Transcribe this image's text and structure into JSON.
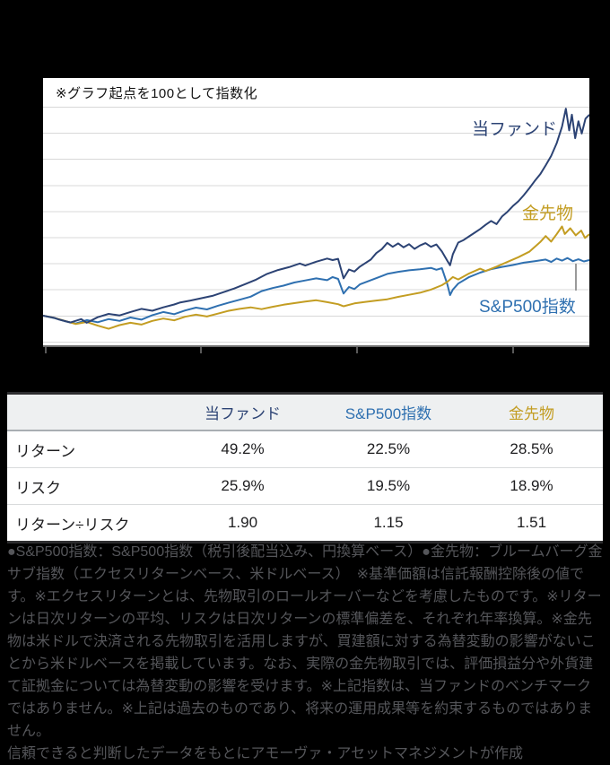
{
  "chart": {
    "note": "※グラフ起点を100として指数化",
    "series_labels": {
      "fund": "当ファンド",
      "gold": "金先物",
      "sp500": "S&P500指数"
    },
    "colors": {
      "fund": "#2c4374",
      "gold": "#c39d22",
      "sp500": "#2f70b0",
      "gridline": "#d8d8d8"
    }
  },
  "chart_data": {
    "type": "line",
    "title": "※グラフ起点を100として指数化",
    "baseline": 100,
    "x_unit": "percent_of_period",
    "x_axis_labels": "redacted (blacked out)",
    "y_axis_labels": "none shown",
    "ylim": [
      88,
      182
    ],
    "grid": "horizontal, 10-unit spacing",
    "legend_position": "inline labels at line ends",
    "series": [
      {
        "id": "sp500",
        "name": "S&P500指数",
        "color": "#2f70b0",
        "points": [
          [
            0,
            100
          ],
          [
            2,
            99.1
          ],
          [
            4,
            97.9
          ],
          [
            6,
            97
          ],
          [
            8,
            98.3
          ],
          [
            10,
            97.5
          ],
          [
            12,
            98.7
          ],
          [
            14,
            98
          ],
          [
            16,
            99.3
          ],
          [
            18,
            98.5
          ],
          [
            20,
            100.2
          ],
          [
            22,
            101.4
          ],
          [
            24,
            100.6
          ],
          [
            26,
            102
          ],
          [
            28,
            103.1
          ],
          [
            30,
            102.4
          ],
          [
            32,
            103.8
          ],
          [
            34,
            105
          ],
          [
            36,
            106.1
          ],
          [
            38,
            107.3
          ],
          [
            40,
            109.4
          ],
          [
            42,
            110.6
          ],
          [
            44,
            111.5
          ],
          [
            46,
            112.7
          ],
          [
            48,
            113.5
          ],
          [
            50,
            114.3
          ],
          [
            52,
            113.6
          ],
          [
            53,
            114.8
          ],
          [
            54,
            114.1
          ],
          [
            55,
            108.5
          ],
          [
            56,
            111
          ],
          [
            57,
            110.2
          ],
          [
            58,
            112
          ],
          [
            60,
            113.6
          ],
          [
            62,
            115.2
          ],
          [
            63,
            116
          ],
          [
            65,
            116.8
          ],
          [
            67,
            117.4
          ],
          [
            69,
            117.8
          ],
          [
            71,
            118.3
          ],
          [
            72,
            117.6
          ],
          [
            73,
            118.2
          ],
          [
            74,
            112
          ],
          [
            74.5,
            107.9
          ],
          [
            75,
            110
          ],
          [
            76,
            112.3
          ],
          [
            78,
            114.8
          ],
          [
            80,
            116.5
          ],
          [
            82,
            117.8
          ],
          [
            84,
            118.7
          ],
          [
            86,
            119.4
          ],
          [
            88,
            120.3
          ],
          [
            90,
            120.9
          ],
          [
            92,
            121.5
          ],
          [
            93,
            120.6
          ],
          [
            94,
            121.9
          ],
          [
            95,
            121.1
          ],
          [
            96,
            122.1
          ],
          [
            97,
            120.9
          ],
          [
            98,
            121.6
          ],
          [
            99,
            120.8
          ],
          [
            100,
            121.3
          ]
        ]
      },
      {
        "id": "gold",
        "name": "金先物",
        "color": "#c39d22",
        "points": [
          [
            0,
            100
          ],
          [
            2,
            99.2
          ],
          [
            4,
            98
          ],
          [
            6,
            96.8
          ],
          [
            8,
            97.6
          ],
          [
            10,
            96.2
          ],
          [
            12,
            95
          ],
          [
            14,
            96.4
          ],
          [
            16,
            97.3
          ],
          [
            18,
            96.6
          ],
          [
            20,
            98
          ],
          [
            22,
            98.9
          ],
          [
            24,
            98.2
          ],
          [
            26,
            99.6
          ],
          [
            28,
            100.4
          ],
          [
            30,
            99.7
          ],
          [
            32,
            100.8
          ],
          [
            34,
            101.9
          ],
          [
            36,
            102.6
          ],
          [
            38,
            103.2
          ],
          [
            40,
            102.5
          ],
          [
            42,
            103.4
          ],
          [
            44,
            104.2
          ],
          [
            46,
            104.8
          ],
          [
            48,
            105.4
          ],
          [
            50,
            105.9
          ],
          [
            52,
            105.2
          ],
          [
            54,
            104.4
          ],
          [
            55,
            103.6
          ],
          [
            57,
            104.7
          ],
          [
            59,
            105.3
          ],
          [
            61,
            105.8
          ],
          [
            63,
            106.3
          ],
          [
            65,
            107.2
          ],
          [
            67,
            108
          ],
          [
            69,
            108.8
          ],
          [
            71,
            110
          ],
          [
            73,
            111.7
          ],
          [
            74,
            113
          ],
          [
            75,
            114.8
          ],
          [
            76,
            113.9
          ],
          [
            78,
            116.2
          ],
          [
            80,
            118
          ],
          [
            81,
            117.1
          ],
          [
            83,
            118.8
          ],
          [
            85,
            120.6
          ],
          [
            87,
            122.4
          ],
          [
            89,
            124.5
          ],
          [
            91,
            128.2
          ],
          [
            92,
            130.5
          ],
          [
            93,
            128.4
          ],
          [
            94,
            131.2
          ],
          [
            95,
            134.2
          ],
          [
            95.5,
            131.3
          ],
          [
            96.5,
            133.5
          ],
          [
            97.5,
            130.8
          ],
          [
            98.5,
            132.6
          ],
          [
            99.2,
            129.8
          ],
          [
            100,
            131.2
          ]
        ]
      },
      {
        "id": "fund",
        "name": "当ファンド",
        "color": "#2c4374",
        "points": [
          [
            0,
            100
          ],
          [
            2,
            99.2
          ],
          [
            3,
            98.5
          ],
          [
            5,
            97.4
          ],
          [
            7,
            98.7
          ],
          [
            8,
            97.3
          ],
          [
            10,
            99.4
          ],
          [
            12,
            100.7
          ],
          [
            14,
            100.1
          ],
          [
            16,
            101.4
          ],
          [
            18,
            102.6
          ],
          [
            20,
            101.9
          ],
          [
            22,
            103.2
          ],
          [
            24,
            104.3
          ],
          [
            25,
            105
          ],
          [
            27,
            105.8
          ],
          [
            29,
            106.7
          ],
          [
            31,
            107.6
          ],
          [
            33,
            109
          ],
          [
            35,
            110.4
          ],
          [
            37,
            112.1
          ],
          [
            39,
            113.8
          ],
          [
            41,
            116
          ],
          [
            43,
            117.5
          ],
          [
            45,
            118.6
          ],
          [
            47,
            120
          ],
          [
            48,
            119.2
          ],
          [
            50,
            120.7
          ],
          [
            52,
            121.9
          ],
          [
            53,
            121.3
          ],
          [
            54,
            121.8
          ],
          [
            55,
            114.3
          ],
          [
            56,
            117.7
          ],
          [
            57,
            116.9
          ],
          [
            58,
            118.8
          ],
          [
            60,
            121.5
          ],
          [
            61,
            124
          ],
          [
            62,
            125.5
          ],
          [
            63,
            127.9
          ],
          [
            64,
            126.4
          ],
          [
            65,
            127.7
          ],
          [
            66,
            126.2
          ],
          [
            67,
            127.4
          ],
          [
            68,
            125.6
          ],
          [
            69,
            126.9
          ],
          [
            70,
            127.8
          ],
          [
            71,
            126.4
          ],
          [
            72,
            127.3
          ],
          [
            73,
            124.6
          ],
          [
            74,
            121
          ],
          [
            74.5,
            119.3
          ],
          [
            75,
            123.5
          ],
          [
            76,
            128
          ],
          [
            77,
            129
          ],
          [
            78,
            130.4
          ],
          [
            79,
            131.8
          ],
          [
            80,
            133.2
          ],
          [
            81,
            134.8
          ],
          [
            82,
            136.3
          ],
          [
            83,
            135.1
          ],
          [
            84,
            138
          ],
          [
            85,
            139.8
          ],
          [
            86,
            142
          ],
          [
            87,
            143.8
          ],
          [
            88,
            146.2
          ],
          [
            89,
            148.8
          ],
          [
            90,
            151.6
          ],
          [
            91,
            154.2
          ],
          [
            92,
            157.6
          ],
          [
            93,
            161.2
          ],
          [
            94,
            166
          ],
          [
            95,
            172.4
          ],
          [
            95.7,
            179.3
          ],
          [
            96.3,
            171
          ],
          [
            96.8,
            177
          ],
          [
            97.4,
            168
          ],
          [
            98,
            174.5
          ],
          [
            98.6,
            169.8
          ],
          [
            99.3,
            175.5
          ],
          [
            100,
            177
          ]
        ]
      }
    ]
  },
  "table": {
    "header": [
      "",
      "当ファンド",
      "S&P500指数",
      "金先物"
    ],
    "rows": [
      {
        "label": "リターン",
        "values": [
          "49.2%",
          "22.5%",
          "28.5%"
        ]
      },
      {
        "label": "リスク",
        "values": [
          "25.9%",
          "19.5%",
          "18.9%"
        ]
      },
      {
        "label": "リターン÷リスク",
        "values": [
          "1.90",
          "1.15",
          "1.51"
        ]
      }
    ]
  },
  "footnotes": {
    "main": "●S&P500指数：S&P500指数（税引後配当込み、円換算ベース）●金先物：ブルームバーグ金サブ指数（エクセスリターンベース、米ドルベース）　※基準価額は信託報酬控除後の値です。※エクセスリターンとは、先物取引のロールオーバーなどを考慮したものです。※リターンは日次リターンの平均、リスクは日次リターンの標準偏差を、それぞれ年率換算。※金先物は米ドルで決済される先物取引を活用しますが、買建額に対する為替変動の影響がないことから米ドルベースを掲載しています。なお、実際の金先物取引では、評価損益分や外貨建て証拠金については為替変動の影響を受けます。※上記指数は、当ファンドのベンチマークではありません。※上記は過去のものであり、将来の運用成果等を約束するものではありません。",
    "credit": "信頼できると判断したデータをもとにアモーヴァ・アセットマネジメントが作成"
  }
}
